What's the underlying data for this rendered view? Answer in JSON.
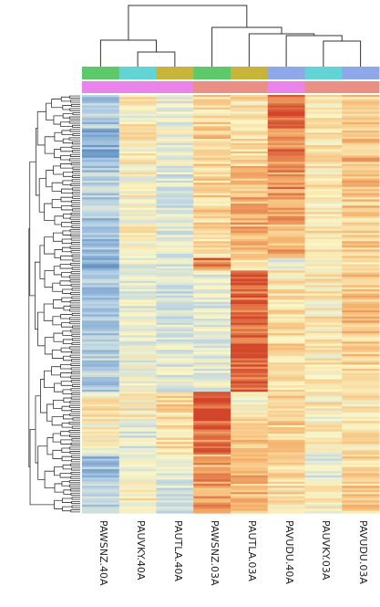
{
  "chart_data": {
    "type": "heatmap",
    "title": "",
    "xlabel": "",
    "ylabel": "",
    "columns": [
      "PAWSNZ.40A",
      "PAUVKY.40A",
      "PAUTLA.40A",
      "PAWSNZ.03A",
      "PAUTLA.03A",
      "PAVUDU.40A",
      "PAUVKY.03A",
      "PAVUDU.03A"
    ],
    "row_labels_shown": false,
    "annotation_track_1": [
      "green",
      "cyan",
      "olive",
      "green",
      "olive",
      "blue",
      "cyan",
      "blue"
    ],
    "annotation_track_2": [
      "pink",
      "pink",
      "pink",
      "salmon",
      "salmon",
      "pink",
      "salmon",
      "salmon"
    ],
    "annotation_colors": {
      "green": "#5ec96a",
      "cyan": "#62d4d6",
      "olive": "#c9b43a",
      "blue": "#8ea8ea",
      "pink": "#ea83ea",
      "salmon": "#ea8f83"
    },
    "colormap": [
      "#5f8fc2",
      "#b6d0e6",
      "#fbf7c6",
      "#f5b46e",
      "#d2452b"
    ],
    "value_range": [
      -2,
      2
    ],
    "column_dendrogram": true,
    "row_dendrogram": true,
    "row_blocks": [
      {
        "rows": 16,
        "values": [
          -1.0,
          0.1,
          -0.3,
          0.4,
          0.3,
          1.8,
          0.2,
          0.6
        ]
      },
      {
        "rows": 18,
        "values": [
          -1.5,
          0.2,
          -0.2,
          0.6,
          0.4,
          1.4,
          0.3,
          0.8
        ]
      },
      {
        "rows": 24,
        "values": [
          -1.0,
          0.0,
          -0.5,
          0.5,
          0.9,
          1.2,
          0.2,
          0.7
        ]
      },
      {
        "rows": 20,
        "values": [
          -1.1,
          0.0,
          -0.4,
          0.4,
          1.0,
          1.0,
          0.3,
          0.6
        ]
      },
      {
        "rows": 6,
        "values": [
          -1.6,
          -0.2,
          -0.5,
          1.5,
          0.4,
          -0.2,
          0.1,
          0.5
        ]
      },
      {
        "rows": 30,
        "values": [
          -1.1,
          -0.3,
          -0.6,
          -0.4,
          1.7,
          0.3,
          0.2,
          0.7
        ]
      },
      {
        "rows": 28,
        "values": [
          -1.0,
          -0.2,
          -0.4,
          -0.3,
          1.8,
          0.4,
          0.2,
          0.5
        ]
      },
      {
        "rows": 12,
        "values": [
          0.2,
          0.1,
          0.5,
          1.9,
          0.0,
          0.5,
          0.2,
          0.2
        ]
      },
      {
        "rows": 18,
        "values": [
          0.1,
          -0.4,
          0.3,
          1.6,
          0.6,
          0.6,
          0.1,
          0.3
        ]
      },
      {
        "rows": 12,
        "values": [
          -1.2,
          0.0,
          -0.3,
          1.0,
          1.0,
          0.3,
          -0.3,
          0.5
        ]
      },
      {
        "rows": 16,
        "values": [
          -1.0,
          0.1,
          -0.5,
          1.2,
          0.8,
          0.3,
          0.1,
          0.6
        ]
      }
    ]
  }
}
